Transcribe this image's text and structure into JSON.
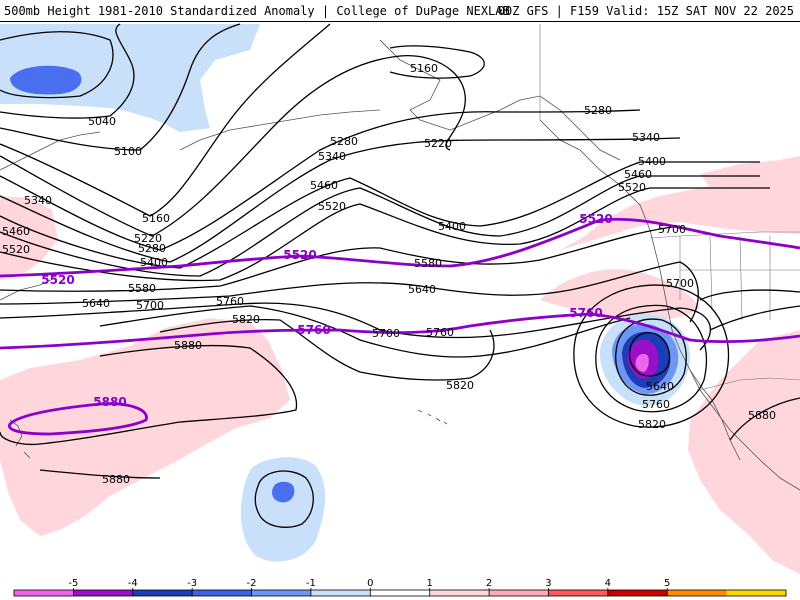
{
  "header": {
    "left_title": "500mb Height 1981-2010 Standardized Anomaly | College of DuPage NEXLAB",
    "right_title": "00Z GFS | F159 Valid: 15Z SAT NOV 22 2025"
  },
  "contour_labels": [
    {
      "text": "5160"
    },
    {
      "text": "5040"
    },
    {
      "text": "5100"
    },
    {
      "text": "5220"
    },
    {
      "text": "5280"
    },
    {
      "text": "5340"
    },
    {
      "text": "5280"
    },
    {
      "text": "5340"
    },
    {
      "text": "5400"
    },
    {
      "text": "5460"
    },
    {
      "text": "5520"
    },
    {
      "text": "5460"
    },
    {
      "text": "5520"
    },
    {
      "text": "5400"
    },
    {
      "text": "5340"
    },
    {
      "text": "5460"
    },
    {
      "text": "5520"
    },
    {
      "text": "5160"
    },
    {
      "text": "5220"
    },
    {
      "text": "5280"
    },
    {
      "text": "5400"
    },
    {
      "text": "5580"
    },
    {
      "text": "5640"
    },
    {
      "text": "5700"
    },
    {
      "text": "5760"
    },
    {
      "text": "5820"
    },
    {
      "text": "5880"
    },
    {
      "text": "5580"
    },
    {
      "text": "5640"
    },
    {
      "text": "5700"
    },
    {
      "text": "5760"
    },
    {
      "text": "5820"
    },
    {
      "text": "5700"
    },
    {
      "text": "5640"
    },
    {
      "text": "5760"
    },
    {
      "text": "5820"
    },
    {
      "text": "5880"
    },
    {
      "text": "5880"
    },
    {
      "text": "5700"
    }
  ],
  "highlight_labels": [
    {
      "text": "5520"
    },
    {
      "text": "5520"
    },
    {
      "text": "5520"
    },
    {
      "text": "5760"
    },
    {
      "text": "5760"
    },
    {
      "text": "5880"
    }
  ],
  "colorbar": {
    "ticks": [
      "-5",
      "-4",
      "-3",
      "-2",
      "-1",
      "0",
      "1",
      "2",
      "3",
      "4",
      "5"
    ],
    "colors": [
      "#ee66ee",
      "#9a10c8",
      "#1c3cb8",
      "#3c64e6",
      "#6e96f5",
      "#c8e0fa",
      "#ffffff",
      "#ffd6dc",
      "#ffaab4",
      "#ff5a5a",
      "#cc0000",
      "#ff8c00",
      "#ffd700"
    ]
  },
  "colors": {
    "height_contour": "#000000",
    "highlight_contour": "#8c00c8",
    "negative_anomaly_light": "#c8e0fa",
    "negative_anomaly_strong": "#4a6ef0",
    "positive_anomaly_light": "#ffd6dc",
    "coastline": "#555555"
  }
}
